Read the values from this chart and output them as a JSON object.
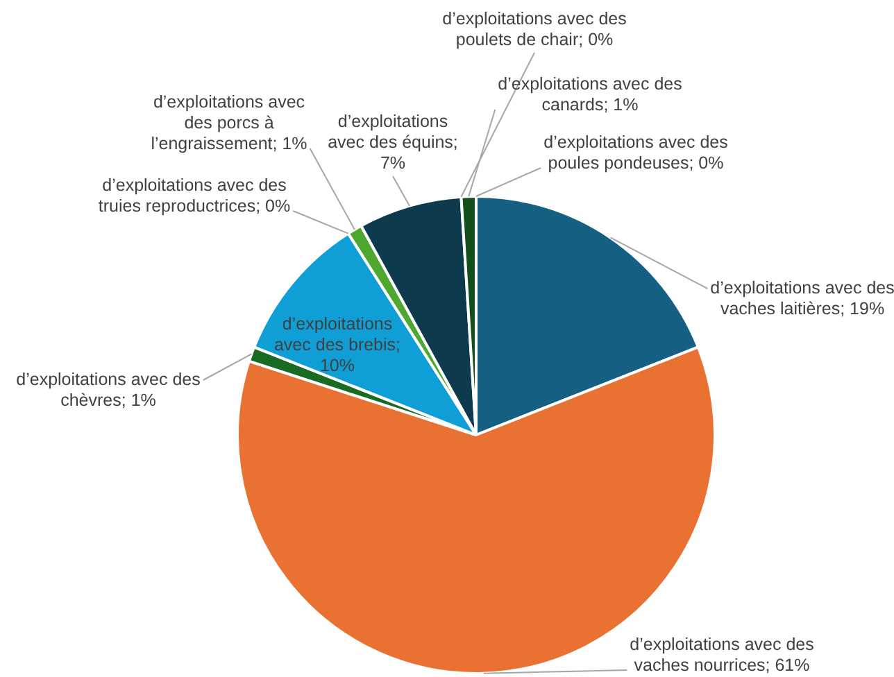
{
  "chart_data": {
    "type": "pie",
    "categories": [
      "d’exploitations avec des vaches laitières",
      "d’exploitations avec des vaches nourrices",
      "d’exploitations avec des chèvres",
      "d’exploitations avec des brebis",
      "d’exploitations avec des truies reproductrices",
      "d’exploitations avec des porcs à l’engraissement",
      "d’exploitations avec des équins",
      "d’exploitations avec des poulets de chair",
      "d’exploitations avec des canards",
      "d’exploitations avec des poules pondeuses"
    ],
    "values": [
      19,
      61,
      1,
      10,
      0,
      1,
      7,
      0,
      1,
      0
    ],
    "value_labels": [
      "; 19%",
      "; 61%",
      "; 1%",
      "; 10%",
      "; 0%",
      "; 1%",
      "; 7%",
      "; 0%",
      "; 1%",
      "; 0%"
    ],
    "colors": [
      "#156082",
      "#e97132",
      "#196b24",
      "#0f9ed5",
      "#a02b93",
      "#4ea72e",
      "#0e3a4e",
      "#b85a27",
      "#124f1b",
      "#0c7eab"
    ],
    "legend": false
  }
}
